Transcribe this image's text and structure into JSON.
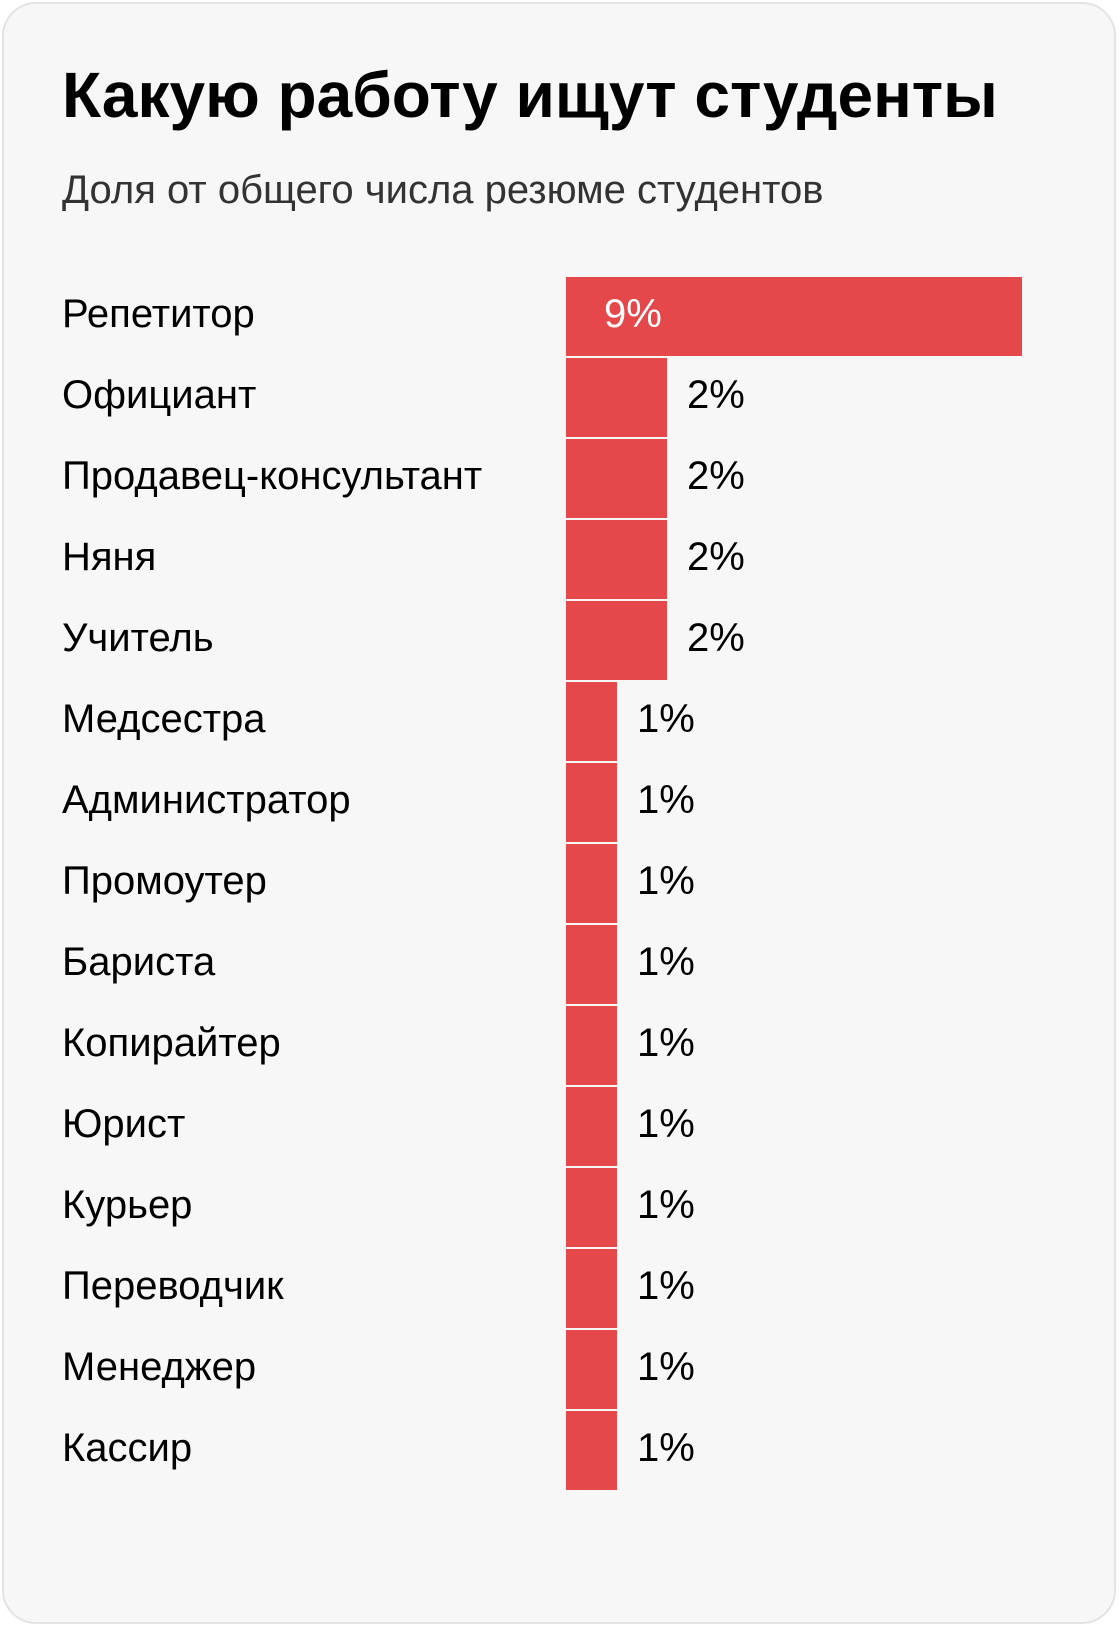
{
  "header": {
    "title": "Какую работу ищут студенты",
    "subtitle": "Доля от общего числа резюме студентов"
  },
  "colors": {
    "background": "#f7f7f7",
    "card_border": "#e3e3e3",
    "bar": "#e5484a",
    "text": "#000000",
    "label_inside": "#ffffff"
  },
  "chart_data": {
    "type": "bar",
    "orientation": "horizontal",
    "title": "Какую работу ищут студенты",
    "subtitle": "Доля от общего числа резюме студентов",
    "categories": [
      "Репетитор",
      "Официант",
      "Продавец-консультант",
      "Няня",
      "Учитель",
      "Медсестра",
      "Администратор",
      "Промоутер",
      "Бариста",
      "Копирайтер",
      "Юрист",
      "Курьер",
      "Переводчик",
      "Менеджер",
      "Кассир"
    ],
    "values": [
      9,
      2,
      2,
      2,
      2,
      1,
      1,
      1,
      1,
      1,
      1,
      1,
      1,
      1,
      1
    ],
    "value_labels": [
      "9%",
      "2%",
      "2%",
      "2%",
      "2%",
      "1%",
      "1%",
      "1%",
      "1%",
      "1%",
      "1%",
      "1%",
      "1%",
      "1%",
      "1%"
    ],
    "unit": "%",
    "xlim": [
      0,
      9
    ],
    "grid": false,
    "legend": "none"
  }
}
